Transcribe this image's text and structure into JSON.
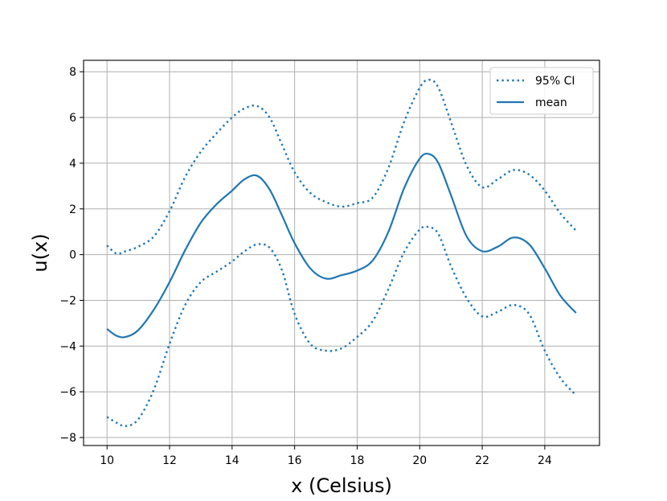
{
  "chart_data": {
    "type": "line",
    "xlabel": "x (Celsius)",
    "ylabel": "u(x)",
    "xlim": [
      9.25,
      25.75
    ],
    "ylim": [
      -8.35,
      8.5
    ],
    "xticks": [
      10,
      12,
      14,
      16,
      18,
      20,
      22,
      24
    ],
    "yticks": [
      -8,
      -6,
      -4,
      -2,
      0,
      2,
      4,
      6,
      8
    ],
    "ytick_labels": [
      "−8",
      "−6",
      "−4",
      "−2",
      "0",
      "2",
      "4",
      "6",
      "8"
    ],
    "grid": true,
    "legend_position": "top-right",
    "color": "#1f77b4",
    "series": [
      {
        "name": "95% CI",
        "style": "dotted",
        "band": "upper",
        "x": [
          10.0,
          10.3,
          10.6,
          11.0,
          11.5,
          12.0,
          12.5,
          13.0,
          13.5,
          14.0,
          14.4,
          14.8,
          15.2,
          15.6,
          16.0,
          16.5,
          17.0,
          17.5,
          18.0,
          18.5,
          19.0,
          19.5,
          20.0,
          20.3,
          20.6,
          21.0,
          21.5,
          22.0,
          22.5,
          23.0,
          23.5,
          24.0,
          24.5,
          25.0
        ],
        "values": [
          0.4,
          0.05,
          0.15,
          0.35,
          0.8,
          1.9,
          3.4,
          4.5,
          5.3,
          6.0,
          6.4,
          6.5,
          6.0,
          4.8,
          3.6,
          2.7,
          2.3,
          2.1,
          2.25,
          2.5,
          3.8,
          5.8,
          7.3,
          7.65,
          7.3,
          5.8,
          3.9,
          2.95,
          3.3,
          3.7,
          3.5,
          2.8,
          1.8,
          1.05
        ]
      },
      {
        "name": "mean",
        "style": "solid",
        "x": [
          10.0,
          10.3,
          10.6,
          11.0,
          11.5,
          12.0,
          12.5,
          13.0,
          13.5,
          14.0,
          14.4,
          14.8,
          15.2,
          15.6,
          16.0,
          16.5,
          17.0,
          17.5,
          18.0,
          18.5,
          19.0,
          19.5,
          20.0,
          20.3,
          20.6,
          21.0,
          21.5,
          22.0,
          22.5,
          23.0,
          23.5,
          24.0,
          24.5,
          25.0
        ],
        "values": [
          -3.25,
          -3.55,
          -3.6,
          -3.3,
          -2.4,
          -1.2,
          0.2,
          1.4,
          2.2,
          2.8,
          3.3,
          3.45,
          2.85,
          1.7,
          0.5,
          -0.6,
          -1.05,
          -0.9,
          -0.7,
          -0.25,
          1.0,
          2.9,
          4.2,
          4.4,
          4.0,
          2.6,
          0.8,
          0.15,
          0.35,
          0.75,
          0.45,
          -0.6,
          -1.8,
          -2.55
        ]
      },
      {
        "name": "95% CI",
        "style": "dotted",
        "band": "lower",
        "x": [
          10.0,
          10.3,
          10.6,
          11.0,
          11.5,
          12.0,
          12.5,
          13.0,
          13.5,
          14.0,
          14.4,
          14.8,
          15.2,
          15.6,
          16.0,
          16.5,
          17.0,
          17.5,
          18.0,
          18.5,
          19.0,
          19.5,
          20.0,
          20.3,
          20.6,
          21.0,
          21.5,
          22.0,
          22.5,
          23.0,
          23.5,
          24.0,
          24.5,
          25.0
        ],
        "values": [
          -7.1,
          -7.35,
          -7.5,
          -7.2,
          -5.9,
          -3.9,
          -2.2,
          -1.2,
          -0.75,
          -0.3,
          0.15,
          0.45,
          0.3,
          -0.7,
          -2.6,
          -3.9,
          -4.2,
          -4.1,
          -3.6,
          -2.9,
          -1.5,
          0.1,
          1.1,
          1.2,
          0.9,
          -0.5,
          -1.9,
          -2.7,
          -2.5,
          -2.2,
          -2.6,
          -4.2,
          -5.4,
          -6.15
        ]
      }
    ],
    "legend": [
      {
        "label": "95% CI",
        "style": "dotted"
      },
      {
        "label": "mean",
        "style": "solid"
      }
    ]
  }
}
